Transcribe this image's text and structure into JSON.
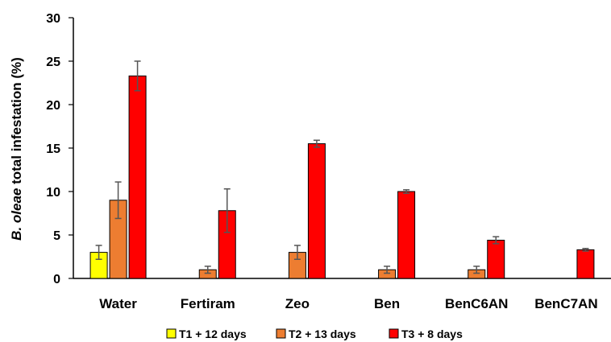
{
  "chart_data": {
    "type": "bar",
    "ylabel_italic": "B. oleae",
    "ylabel_rest": " total infestation (%)",
    "ylim": [
      0,
      30
    ],
    "yticks": [
      0,
      5,
      10,
      15,
      20,
      25,
      30
    ],
    "grid": false,
    "legend_position": "bottom",
    "categories": [
      "Water",
      "Fertiram",
      "Zeo",
      "Ben",
      "BenC6AN",
      "BenC7AN"
    ],
    "series": [
      {
        "name": "T1 + 12 days",
        "color": "#ffff00",
        "values": [
          3.0,
          null,
          null,
          null,
          null,
          null
        ],
        "errors": [
          0.8,
          null,
          null,
          null,
          null,
          null
        ]
      },
      {
        "name": "T2 + 13 days",
        "color": "#ed7d31",
        "values": [
          9.0,
          1.0,
          3.0,
          1.0,
          1.0,
          null
        ],
        "errors": [
          2.1,
          0.4,
          0.8,
          0.4,
          0.4,
          null
        ]
      },
      {
        "name": "T3 + 8 days",
        "color": "#ff0000",
        "values": [
          23.3,
          7.8,
          15.5,
          10.0,
          4.4,
          3.3
        ],
        "errors": [
          1.7,
          2.5,
          0.4,
          0.2,
          0.4,
          0.15
        ]
      }
    ]
  }
}
